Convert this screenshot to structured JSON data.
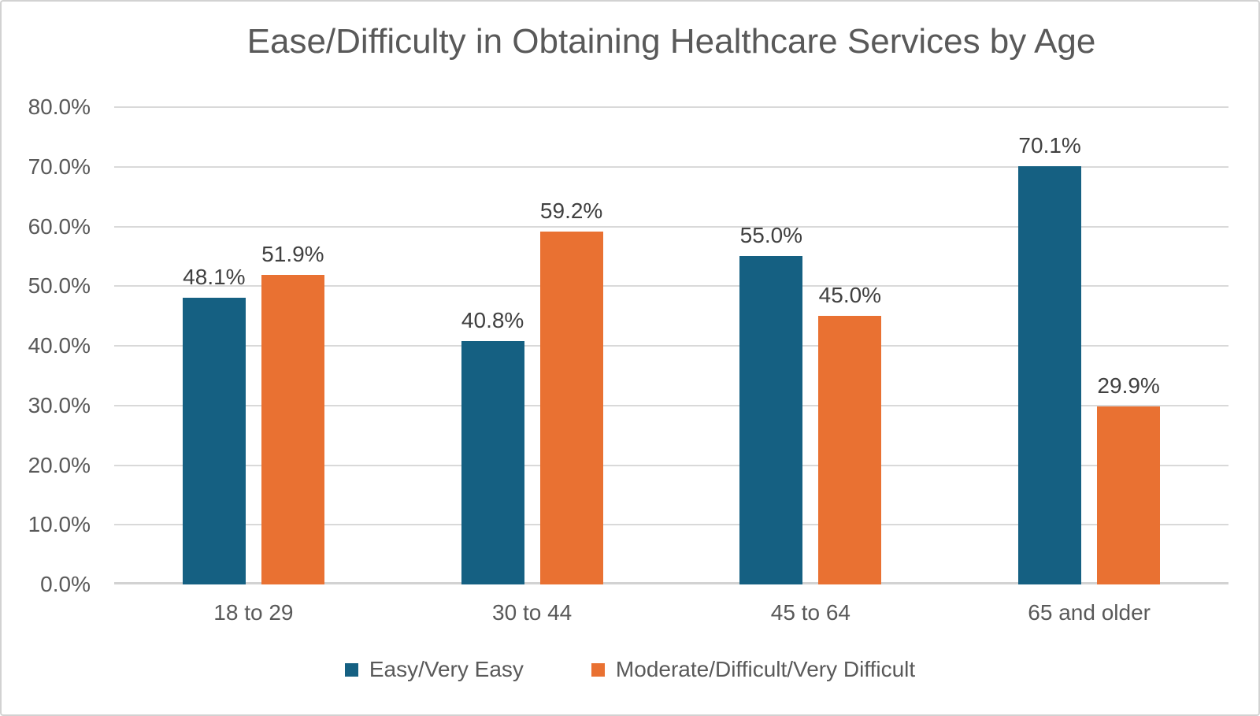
{
  "frame": {
    "background": "#ffffff",
    "border_color": "#d2d2d2"
  },
  "chart_data": {
    "type": "bar",
    "title": "Ease/Difficulty in Obtaining Healthcare Services by Age",
    "xlabel": "",
    "ylabel": "",
    "categories": [
      "18 to 29",
      "30 to 44",
      "45 to 64",
      "65 and older"
    ],
    "series": [
      {
        "name": "Easy/Very Easy",
        "color": "#156082",
        "values": [
          48.1,
          40.8,
          55.0,
          70.1
        ],
        "labels": [
          "48.1%",
          "40.8%",
          "55.0%",
          "70.1%"
        ]
      },
      {
        "name": "Moderate/Difficult/Very Difficult",
        "color": "#E97132",
        "values": [
          51.9,
          59.2,
          45.0,
          29.9
        ],
        "labels": [
          "51.9%",
          "59.2%",
          "45.0%",
          "29.9%"
        ]
      }
    ],
    "ylim": [
      0,
      80
    ],
    "ytick_values": [
      0,
      10,
      20,
      30,
      40,
      50,
      60,
      70,
      80
    ],
    "ytick_labels": [
      "0.0%",
      "10.0%",
      "20.0%",
      "30.0%",
      "40.0%",
      "50.0%",
      "60.0%",
      "70.0%",
      "80.0%"
    ],
    "grid": true,
    "legend_position": "bottom",
    "gridline_color": "#d9d9d9",
    "baseline_color": "#d2d2d2",
    "axis_label_color": "#595959",
    "data_label_color": "#404040",
    "title_color": "#595959"
  }
}
